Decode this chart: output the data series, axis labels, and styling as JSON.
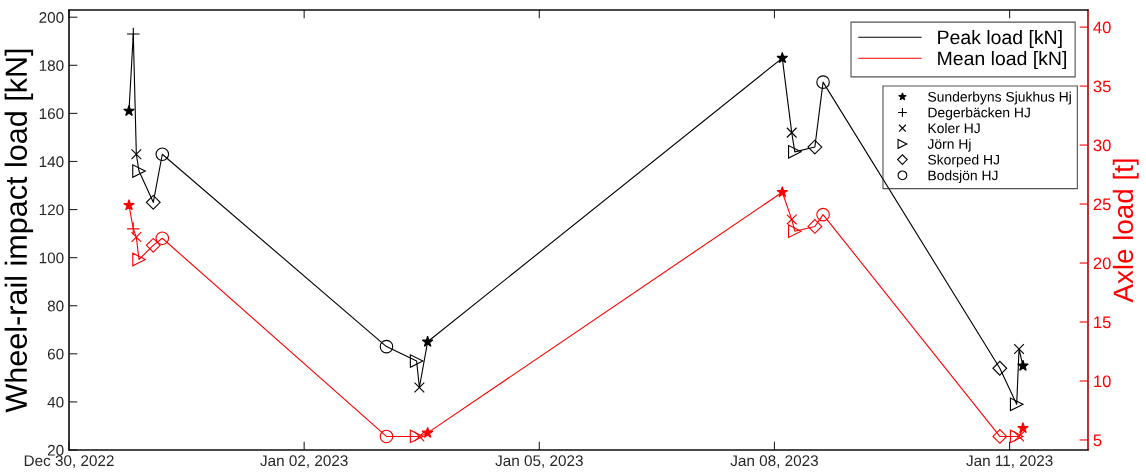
{
  "chart_data": {
    "type": "line",
    "ylabel": "Wheel-rail impact load [kN]",
    "y2label": "Axle load [t]",
    "xlim": [
      "2022-12-30",
      "2023-01-12"
    ],
    "xticks": [
      {
        "value": "2022-12-30",
        "label": "Dec 30, 2022"
      },
      {
        "value": "2023-01-02",
        "label": "Jan 02, 2023"
      },
      {
        "value": "2023-01-05",
        "label": "Jan 05, 2023"
      },
      {
        "value": "2023-01-08",
        "label": "Jan 08, 2023"
      },
      {
        "value": "2023-01-11",
        "label": "Jan 11, 2023"
      }
    ],
    "ylim": [
      20,
      203
    ],
    "yticks": [
      20,
      40,
      60,
      80,
      100,
      120,
      140,
      160,
      180,
      200
    ],
    "y2lim": [
      4.15,
      41.45
    ],
    "y2ticks": [
      5,
      10,
      15,
      20,
      25,
      30,
      35,
      40
    ],
    "legend": "top right",
    "grid": false,
    "series": [
      {
        "name": "Peak load [kN]",
        "color": "#000000",
        "marker": "none",
        "x": [
          "2022-12-30T18:22",
          "2022-12-30T19:41",
          "2022-12-30T20:37",
          "2022-12-30T21:26",
          "2022-12-31T01:48",
          "2022-12-31T04:34",
          "2023-01-03T01:12",
          "2023-01-03T10:26",
          "2023-01-03T11:17",
          "2023-01-03T13:48",
          "2023-01-08T02:24",
          "2023-01-08T05:17",
          "2023-01-08T06:14",
          "2023-01-08T12:22",
          "2023-01-08T14:53",
          "2023-01-10T21:00",
          "2023-01-11T02:10",
          "2023-01-11T02:53",
          "2023-01-11T04:05"
        ],
        "values": [
          161,
          193,
          143,
          136,
          123,
          143,
          63,
          57,
          46,
          65,
          183,
          152,
          144,
          146,
          173,
          54,
          39,
          62,
          55
        ]
      },
      {
        "name": "Mean load [kN]",
        "axis": "y2",
        "color": "#ff0000",
        "marker": "none",
        "x": [
          "2022-12-30T18:22",
          "2022-12-30T19:41",
          "2022-12-30T20:37",
          "2022-12-30T21:26",
          "2022-12-31T01:48",
          "2022-12-31T04:34",
          "2023-01-03T01:12",
          "2023-01-03T10:26",
          "2023-01-03T11:17",
          "2023-01-03T13:48",
          "2023-01-08T02:24",
          "2023-01-08T05:17",
          "2023-01-08T06:14",
          "2023-01-08T12:22",
          "2023-01-08T14:53",
          "2023-01-10T21:00",
          "2023-01-11T02:10",
          "2023-01-11T02:53",
          "2023-01-11T04:05"
        ],
        "values": [
          24.9,
          22.9,
          22.2,
          20.3,
          21.5,
          22.1,
          5.3,
          5.3,
          5.3,
          5.6,
          26.0,
          23.7,
          22.7,
          23.1,
          24.1,
          5.3,
          5.3,
          5.3,
          6.0
        ]
      },
      {
        "name": "Sunderbyns Sjukhus Hj",
        "type": "scatter",
        "color": "#000000",
        "marker": "star",
        "x": [
          "2022-12-30T18:22",
          "2023-01-03T13:48",
          "2023-01-08T02:24",
          "2023-01-11T04:05"
        ],
        "values": [
          161,
          65,
          183,
          55
        ]
      },
      {
        "name": "Degerbäcken HJ",
        "type": "scatter",
        "color": "#000000",
        "marker": "cross",
        "x": [
          "2022-12-30T19:41"
        ],
        "values": [
          193
        ]
      },
      {
        "name": "Koler HJ",
        "type": "scatter",
        "color": "#000000",
        "marker": "x",
        "x": [
          "2022-12-30T20:37",
          "2023-01-03T11:17",
          "2023-01-08T05:17",
          "2023-01-11T02:53"
        ],
        "values": [
          143,
          46,
          152,
          62
        ]
      },
      {
        "name": "Jörn Hj",
        "type": "scatter",
        "color": "#000000",
        "marker": "triangle",
        "x": [
          "2022-12-30T21:26",
          "2023-01-03T10:26",
          "2023-01-08T06:14",
          "2023-01-11T02:10"
        ],
        "values": [
          136,
          57,
          144,
          39
        ]
      },
      {
        "name": "Skorped HJ",
        "type": "scatter",
        "color": "#000000",
        "marker": "diamond",
        "x": [
          "2022-12-31T01:48",
          "2023-01-08T12:22",
          "2023-01-10T21:00"
        ],
        "values": [
          123,
          146,
          54
        ]
      },
      {
        "name": "Bodsjön HJ",
        "type": "scatter",
        "color": "#000000",
        "marker": "circle",
        "x": [
          "2022-12-31T04:34",
          "2023-01-03T01:12",
          "2023-01-08T14:53"
        ],
        "values": [
          143,
          63,
          173
        ]
      },
      {
        "type": "scatter",
        "axis": "y2",
        "color": "#ff0000",
        "marker": "star",
        "x": [
          "2022-12-30T18:22",
          "2023-01-03T13:48",
          "2023-01-08T02:24",
          "2023-01-11T04:05"
        ],
        "values": [
          24.9,
          5.6,
          26.0,
          6.0
        ]
      },
      {
        "type": "scatter",
        "axis": "y2",
        "color": "#ff0000",
        "marker": "cross",
        "x": [
          "2022-12-30T19:41"
        ],
        "values": [
          22.9
        ]
      },
      {
        "type": "scatter",
        "axis": "y2",
        "color": "#ff0000",
        "marker": "x",
        "x": [
          "2022-12-30T20:37",
          "2023-01-03T11:17",
          "2023-01-08T05:17",
          "2023-01-11T02:53"
        ],
        "values": [
          22.2,
          5.3,
          23.7,
          5.3
        ]
      },
      {
        "type": "scatter",
        "axis": "y2",
        "color": "#ff0000",
        "marker": "triangle",
        "x": [
          "2022-12-30T21:26",
          "2023-01-03T10:26",
          "2023-01-08T06:14",
          "2023-01-11T02:10"
        ],
        "values": [
          20.3,
          5.3,
          22.7,
          5.3
        ]
      },
      {
        "type": "scatter",
        "axis": "y2",
        "color": "#ff0000",
        "marker": "diamond",
        "x": [
          "2022-12-31T01:48",
          "2023-01-08T12:22",
          "2023-01-10T21:00"
        ],
        "values": [
          21.5,
          23.1,
          5.3
        ]
      },
      {
        "type": "scatter",
        "axis": "y2",
        "color": "#ff0000",
        "marker": "circle",
        "x": [
          "2022-12-31T04:34",
          "2023-01-03T01:12",
          "2023-01-08T14:53"
        ],
        "values": [
          22.1,
          5.3,
          24.1
        ]
      }
    ]
  }
}
